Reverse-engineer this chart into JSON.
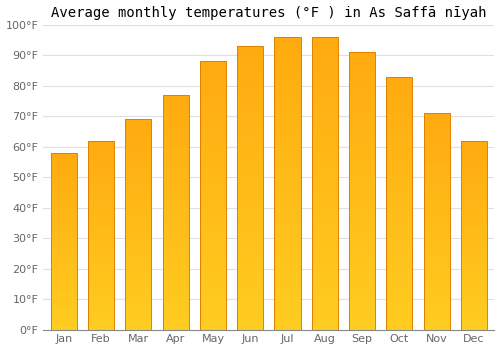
{
  "title": "Average monthly temperatures (°F ) in As Saffā nīyah",
  "months": [
    "Jan",
    "Feb",
    "Mar",
    "Apr",
    "May",
    "Jun",
    "Jul",
    "Aug",
    "Sep",
    "Oct",
    "Nov",
    "Dec"
  ],
  "values": [
    58,
    62,
    69,
    77,
    88,
    93,
    96,
    96,
    91,
    83,
    71,
    62
  ],
  "ylim": [
    0,
    100
  ],
  "yticks": [
    0,
    10,
    20,
    30,
    40,
    50,
    60,
    70,
    80,
    90,
    100
  ],
  "ytick_labels": [
    "0°F",
    "10°F",
    "20°F",
    "30°F",
    "40°F",
    "50°F",
    "60°F",
    "70°F",
    "80°F",
    "90°F",
    "100°F"
  ],
  "bar_face_color": "#FFA520",
  "bar_edge_color": "#E08000",
  "background_color": "#ffffff",
  "grid_color": "#e0e0e0",
  "title_fontsize": 10,
  "tick_fontsize": 8,
  "bar_width": 0.7
}
